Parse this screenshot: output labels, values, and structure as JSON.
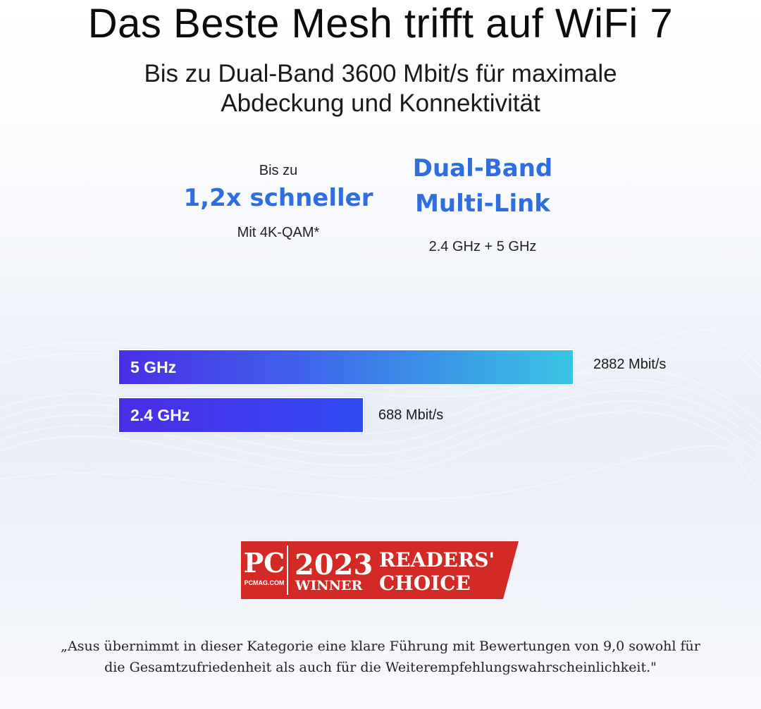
{
  "headline": "Das Beste Mesh trifft auf WiFi 7",
  "subline": {
    "line1": "Bis zu Dual-Band 3600 Mbit/s für maximale",
    "line2": "Abdeckung und Konnektivität"
  },
  "stats": [
    {
      "pre": "Bis zu",
      "big": "1,2x schneller",
      "note": "Mit 4K-QAM*"
    },
    {
      "big_line1": "Dual-Band",
      "big_line2": "Multi-Link",
      "note": "2.4 GHz + 5 GHz"
    }
  ],
  "bars": [
    {
      "label": "5 GHz",
      "value": "2882 Mbit/s",
      "mbit": 2882
    },
    {
      "label": "2.4 GHz",
      "value": "688 Mbit/s",
      "mbit": 688
    }
  ],
  "badge": {
    "logo": "PC",
    "logo_sub": "PCMAG.COM",
    "year": "2023",
    "winner": "WINNER",
    "readers": "READERS'",
    "choice": "CHOICE",
    "color": "#d42a25"
  },
  "quote": {
    "line1": "„Asus übernimmt in dieser Kategorie eine klare Führung mit Bewertungen von 9,0 sowohl für",
    "line2": "die Gesamtzufriedenheit als auch für die Weiterempfehlungswahrscheinlichkeit.\""
  },
  "colors": {
    "accent": "#2f6ee0",
    "bar_start": "#4a2ee6",
    "bar_end": "#39c4e4"
  }
}
